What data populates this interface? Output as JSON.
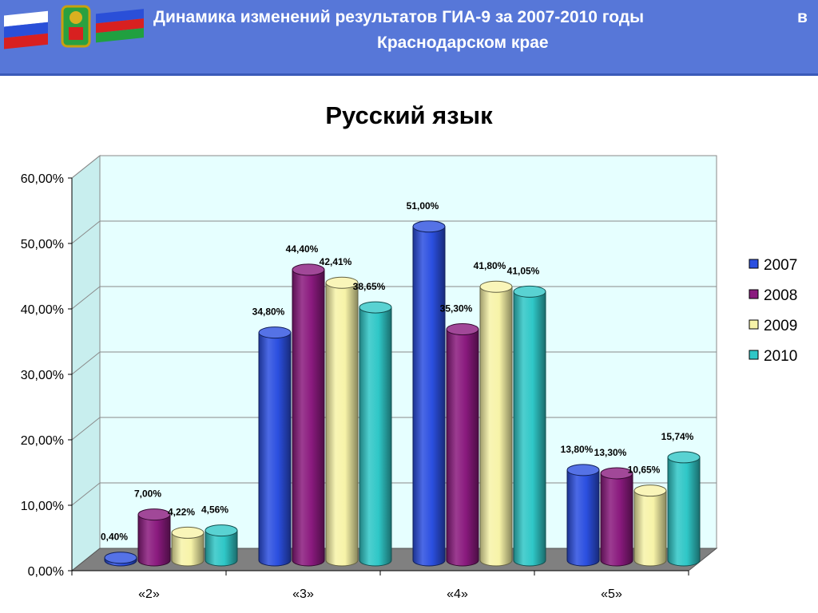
{
  "header": {
    "title_line1": "Динамика изменений результатов ГИА-9 за 2007-2010 годы",
    "title_word_v": "в",
    "title_line2": "Краснодарском крае"
  },
  "chart_data": {
    "type": "bar",
    "title": "Русский язык",
    "categories": [
      "«2»",
      "«3»",
      "«4»",
      "«5»"
    ],
    "series": [
      {
        "name": "2007",
        "values": [
          0.4,
          34.8,
          51.0,
          13.8
        ],
        "labels": [
          "0,40%",
          "34,80%",
          "51,00%",
          "13,80%"
        ],
        "color": "#2b4fe0"
      },
      {
        "name": "2008",
        "values": [
          7.0,
          44.4,
          35.3,
          13.3
        ],
        "labels": [
          "7,00%",
          "44,40%",
          "35,30%",
          "13,30%"
        ],
        "color": "#8a1a7e"
      },
      {
        "name": "2009",
        "values": [
          4.22,
          42.41,
          41.8,
          10.65
        ],
        "labels": [
          "4,22%",
          "42,41%",
          "41,80%",
          "10,65%"
        ],
        "color": "#f7f3a8"
      },
      {
        "name": "2010",
        "values": [
          4.56,
          38.65,
          41.05,
          15.74
        ],
        "labels": [
          "4,56%",
          "38,65%",
          "41,05%",
          "15,74%"
        ],
        "color": "#2fc7c7"
      }
    ],
    "yticks": [
      "0,00%",
      "10,00%",
      "20,00%",
      "30,00%",
      "40,00%",
      "50,00%",
      "60,00%"
    ],
    "ylim": [
      0,
      60
    ],
    "grid": true,
    "legend": "right",
    "wall_color": "#e6ffff",
    "floor_color": "#808080"
  }
}
